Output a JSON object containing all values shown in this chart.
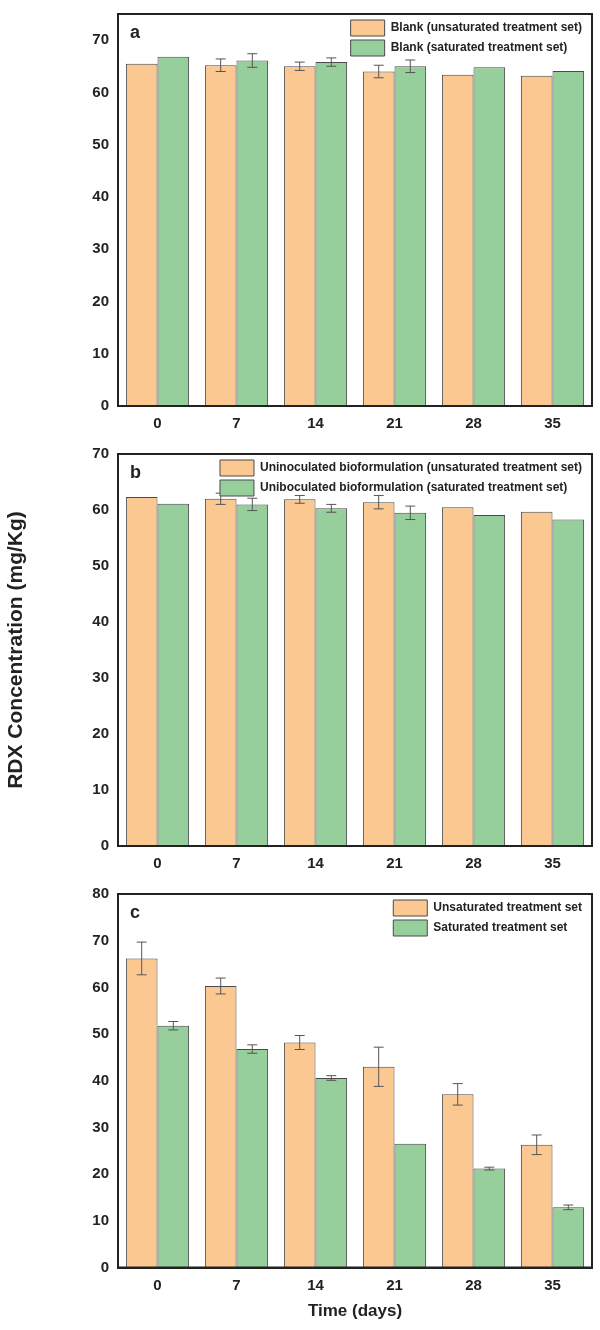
{
  "chart_data": [
    {
      "type": "bar",
      "categories": [
        "0",
        "7",
        "14",
        "21",
        "28",
        "35"
      ],
      "series": [
        {
          "name": "Blank (unsaturated treatment set)",
          "color": "#fbc892",
          "values": [
            65.5,
            65.2,
            65.0,
            64.0,
            63.4,
            63.2
          ],
          "errors": [
            null,
            1.2,
            0.8,
            1.2,
            null,
            null
          ]
        },
        {
          "name": "Blank (saturated treatment set)",
          "color": "#96cf9b",
          "values": [
            66.8,
            66.1,
            65.8,
            65.0,
            64.8,
            64.1
          ],
          "errors": [
            null,
            1.3,
            0.8,
            1.2,
            null,
            null
          ]
        }
      ],
      "ylim": [
        0,
        75
      ],
      "yticks": [
        0,
        10,
        20,
        30,
        40,
        50,
        60,
        70
      ],
      "legend": "top right",
      "annotations": [
        "a"
      ]
    },
    {
      "type": "bar",
      "categories": [
        "0",
        "7",
        "14",
        "21",
        "28",
        "35"
      ],
      "series": [
        {
          "name": "Uninoculated bioformulation (unsaturated treatment set)",
          "color": "#fbc892",
          "values": [
            62.3,
            62.0,
            61.9,
            61.4,
            60.5,
            59.7
          ],
          "errors": [
            null,
            1.0,
            0.7,
            1.2,
            null,
            null
          ]
        },
        {
          "name": "Uniboculated bioformulation (saturated treatment set)",
          "color": "#96cf9b",
          "values": [
            61.1,
            61.0,
            60.3,
            59.5,
            59.1,
            58.3
          ],
          "errors": [
            null,
            1.1,
            0.7,
            1.2,
            null,
            null
          ]
        }
      ],
      "ylim": [
        0,
        70
      ],
      "yticks": [
        0,
        10,
        20,
        30,
        40,
        50,
        60,
        70
      ],
      "ylabel": "RDX Concentration (mg/Kg)",
      "legend": "top right",
      "annotations": [
        "b"
      ]
    },
    {
      "type": "bar",
      "categories": [
        "0",
        "7",
        "14",
        "21",
        "28",
        "35"
      ],
      "series": [
        {
          "name": "Unsaturated treatment set",
          "color": "#fbc892",
          "values": [
            66.2,
            60.3,
            48.2,
            43.0,
            37.1,
            26.3
          ],
          "errors": [
            3.5,
            1.7,
            1.5,
            4.2,
            2.3,
            2.1
          ]
        },
        {
          "name": "Saturated treatment set",
          "color": "#96cf9b",
          "values": [
            51.8,
            46.8,
            40.6,
            26.5,
            21.2,
            12.9
          ],
          "errors": [
            0.9,
            0.9,
            0.5,
            null,
            0.3,
            0.5
          ]
        }
      ],
      "ylim": [
        0,
        80
      ],
      "yticks": [
        0,
        10,
        20,
        30,
        40,
        50,
        60,
        70,
        80
      ],
      "xlabel": "Time (days)",
      "legend": "top right",
      "annotations": [
        "c"
      ]
    }
  ]
}
